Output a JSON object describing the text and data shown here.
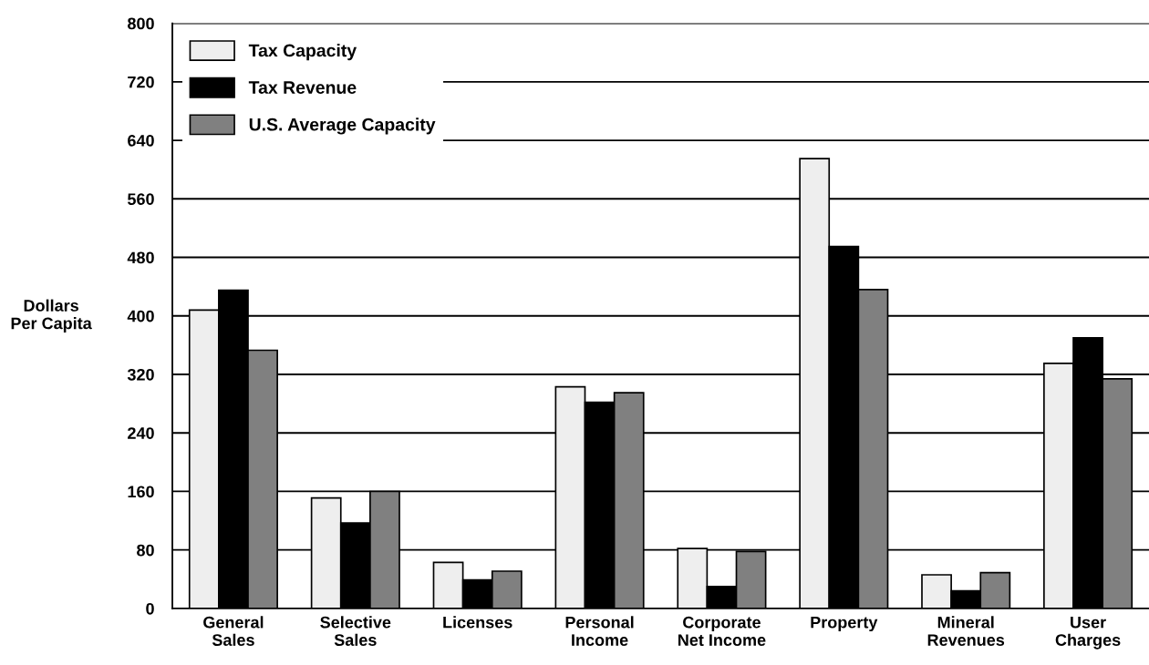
{
  "chart_data": {
    "type": "bar",
    "ylabel": "Dollars\nPer Capita",
    "categories": [
      "General\nSales",
      "Selective\nSales",
      "Licenses",
      "Personal\nIncome",
      "Corporate\nNet Income",
      "Property",
      "Mineral\nRevenues",
      "User\nCharges"
    ],
    "series": [
      {
        "name": "Tax Capacity",
        "color": "#eeeeee",
        "values": [
          408,
          151,
          63,
          303,
          82,
          615,
          46,
          335
        ]
      },
      {
        "name": "Tax Revenue",
        "color": "#000000",
        "values": [
          435,
          117,
          39,
          282,
          30,
          495,
          24,
          370
        ]
      },
      {
        "name": "U.S. Average Capacity",
        "color": "#808080",
        "values": [
          353,
          160,
          51,
          295,
          78,
          436,
          49,
          314
        ]
      }
    ],
    "ylim": [
      0,
      800
    ],
    "yticks": [
      0,
      80,
      160,
      240,
      320,
      400,
      480,
      560,
      640,
      720,
      800
    ],
    "grid": "y",
    "legend": "top left"
  }
}
